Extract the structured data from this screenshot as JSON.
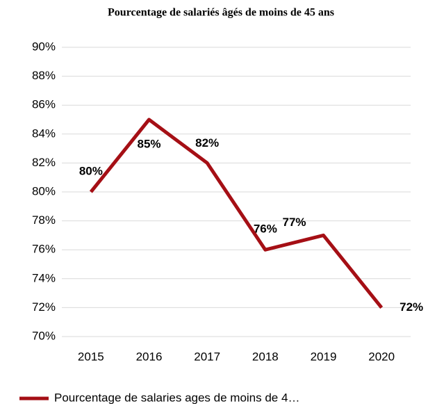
{
  "chart_data": {
    "type": "line",
    "title": "Pourcentage de salariés âgés de moins de 45 ans",
    "categories": [
      "2015",
      "2016",
      "2017",
      "2018",
      "2019",
      "2020"
    ],
    "series": [
      {
        "name": "Pourcentage de salaries ages de moins de 4…",
        "color": "#a50f15",
        "values": [
          80,
          85,
          82,
          76,
          77,
          72
        ],
        "value_labels": [
          "80%",
          "85%",
          "82%",
          "76%",
          "77%",
          "72%"
        ]
      }
    ],
    "ylim": [
      70,
      90
    ],
    "yticks": [
      {
        "value": 70,
        "label": "70%"
      },
      {
        "value": 72,
        "label": "72%"
      },
      {
        "value": 74,
        "label": "74%"
      },
      {
        "value": 76,
        "label": "76%"
      },
      {
        "value": 78,
        "label": "78%"
      },
      {
        "value": 80,
        "label": "80%"
      },
      {
        "value": 82,
        "label": "82%"
      },
      {
        "value": 84,
        "label": "84%"
      },
      {
        "value": 86,
        "label": "86%"
      },
      {
        "value": 88,
        "label": "88%"
      },
      {
        "value": 90,
        "label": "90%"
      }
    ],
    "grid": true,
    "legend": "bottom"
  }
}
